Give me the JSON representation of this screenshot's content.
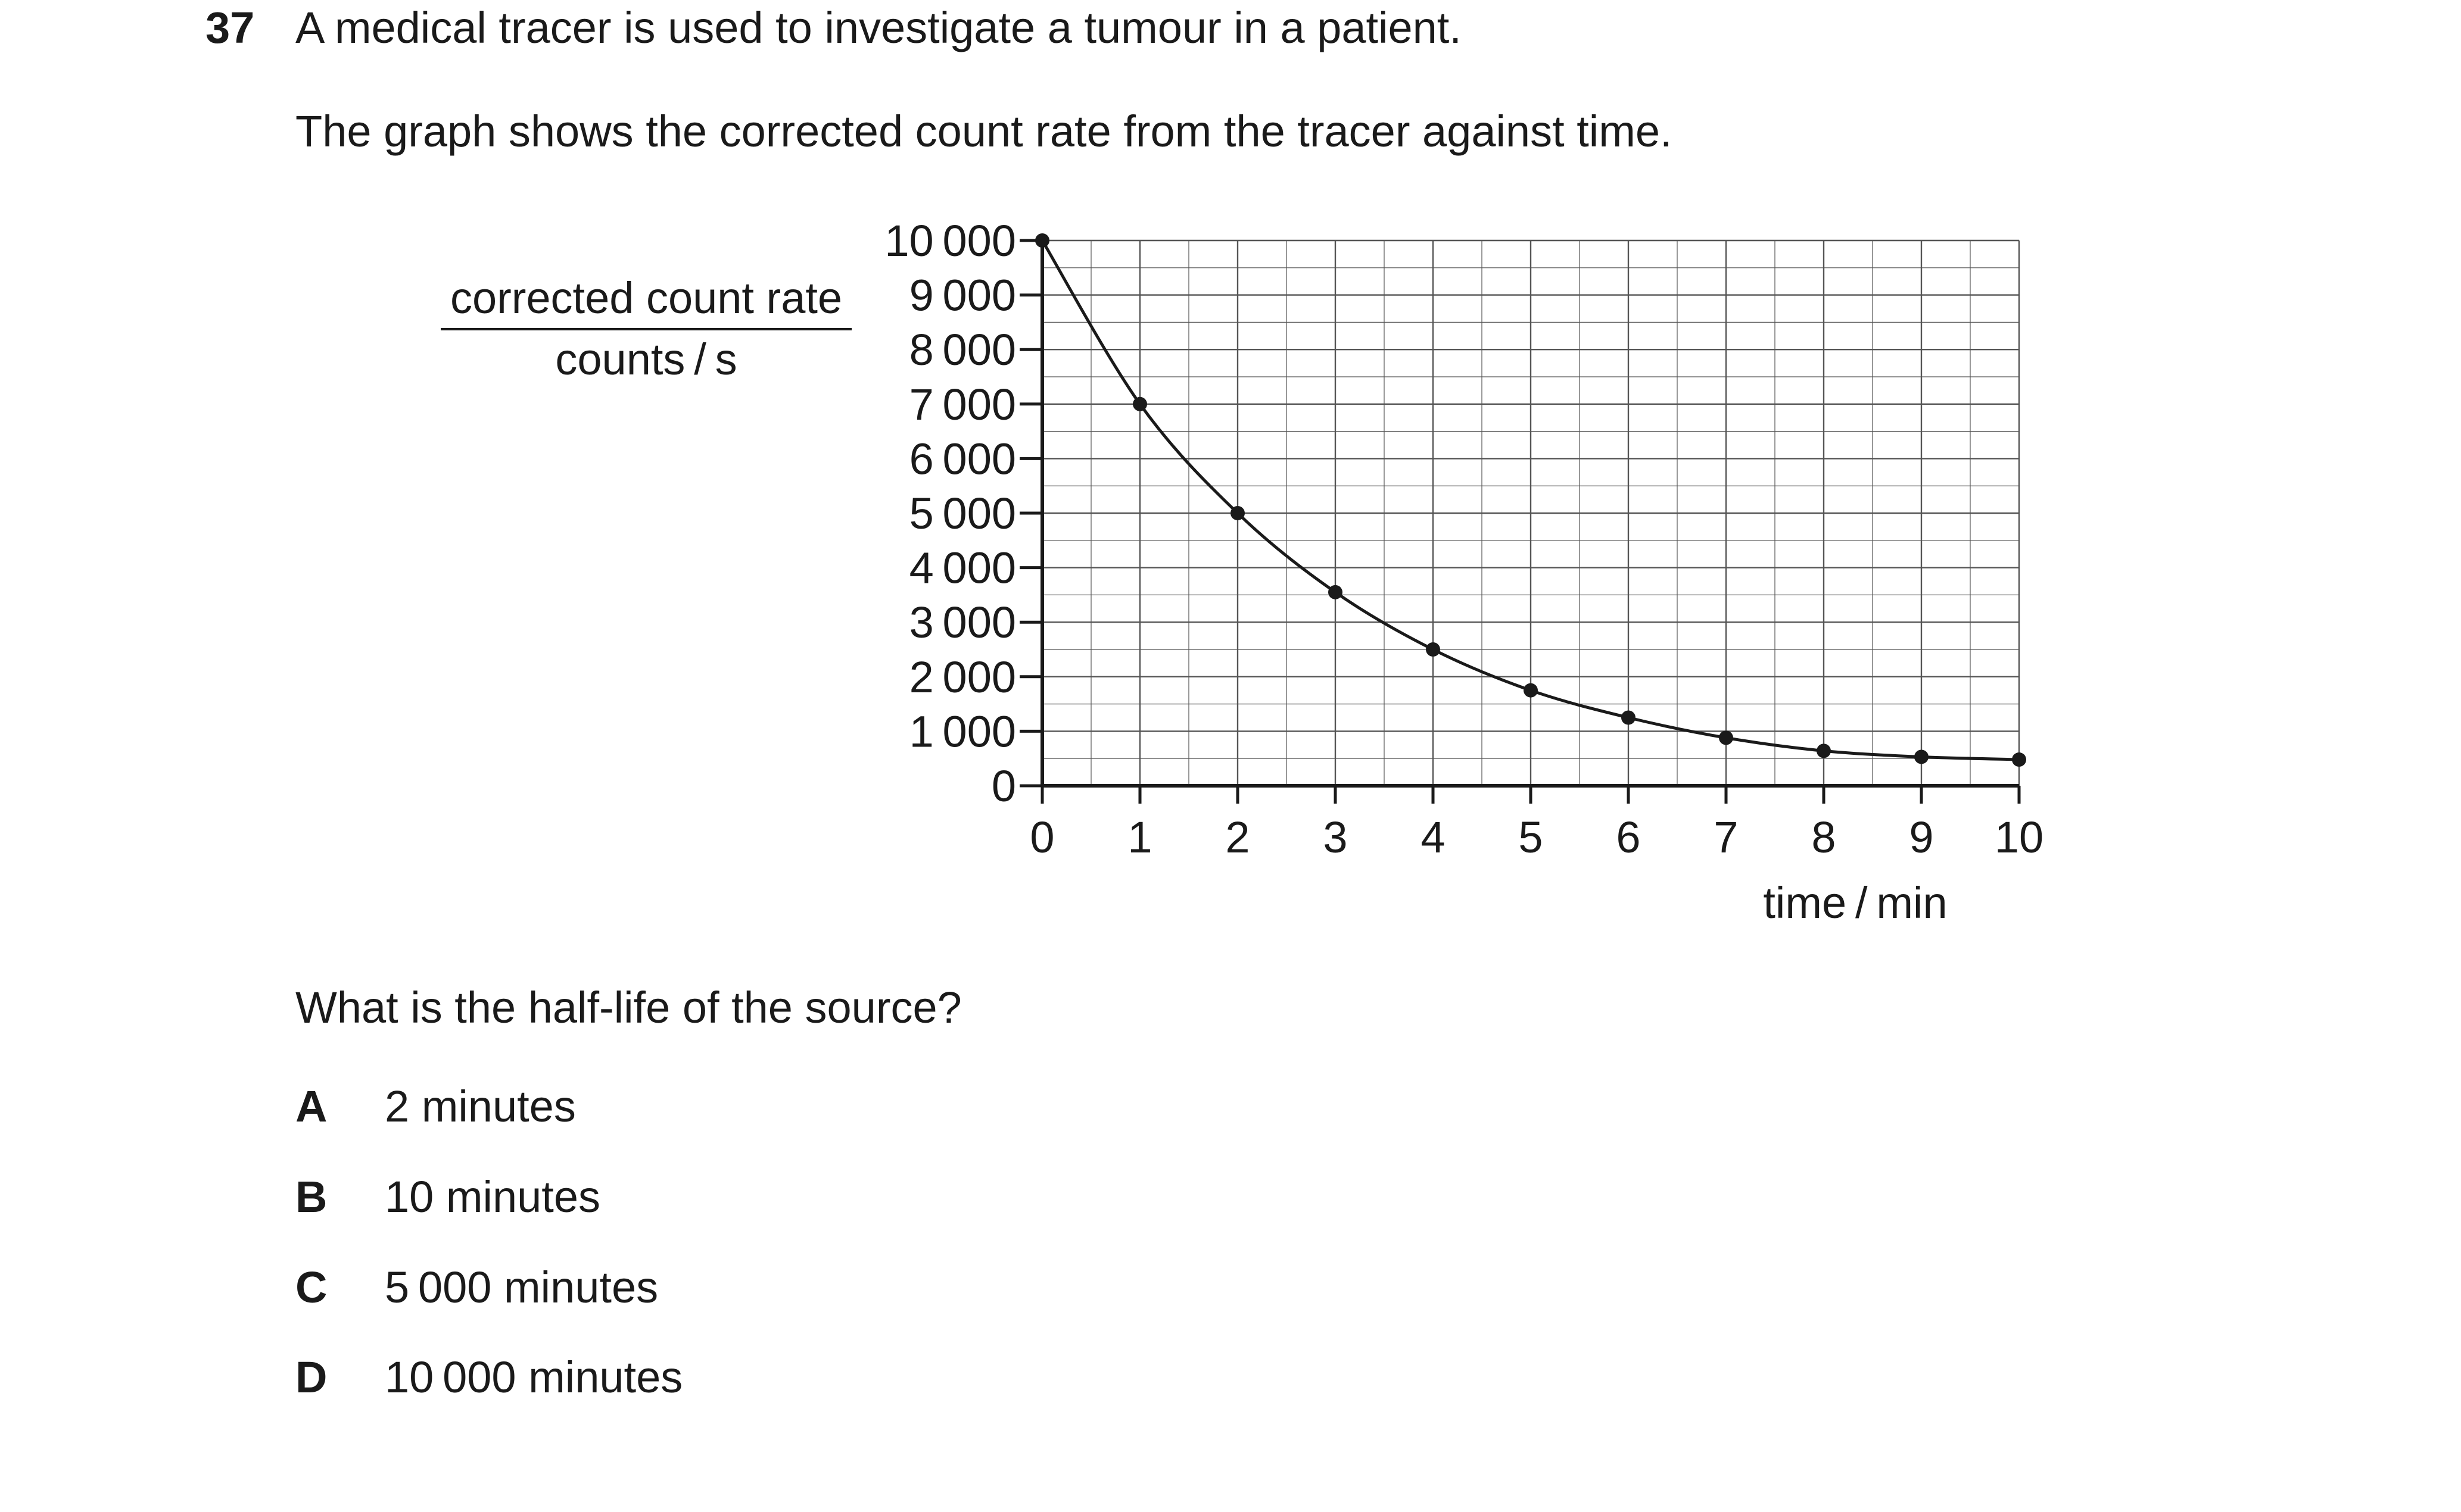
{
  "question": {
    "number": "37",
    "stem": "A medical tracer is used to investigate a tumour in a patient.",
    "intro": "The graph shows the corrected count rate from the tracer against time.",
    "ask": "What is the half-life of the source?",
    "options": [
      {
        "letter": "A",
        "text": "2 minutes"
      },
      {
        "letter": "B",
        "text": "10 minutes"
      },
      {
        "letter": "C",
        "text": "5 000 minutes"
      },
      {
        "letter": "D",
        "text": "10 000 minutes"
      }
    ]
  },
  "chart_data": {
    "type": "line",
    "ylabel": "corrected count rate",
    "ylabel_unit": "counts / s",
    "xlabel": "time / min",
    "x": [
      0,
      1,
      2,
      3,
      4,
      5,
      6,
      7,
      8,
      9,
      10
    ],
    "y": [
      10000,
      7000,
      5000,
      3550,
      2500,
      1750,
      1250,
      880,
      640,
      530,
      480
    ],
    "xlim": [
      0,
      10
    ],
    "ylim": [
      0,
      10000
    ],
    "x_ticks": [
      "0",
      "1",
      "2",
      "3",
      "4",
      "5",
      "6",
      "7",
      "8",
      "9",
      "10"
    ],
    "y_ticks": [
      "0",
      "1 000",
      "2 000",
      "3 000",
      "4 000",
      "5 000",
      "6 000",
      "7 000",
      "8 000",
      "9 000",
      "10 000"
    ],
    "grid": true,
    "line_color": "#1a1a1a",
    "grid_color": "#555555"
  }
}
